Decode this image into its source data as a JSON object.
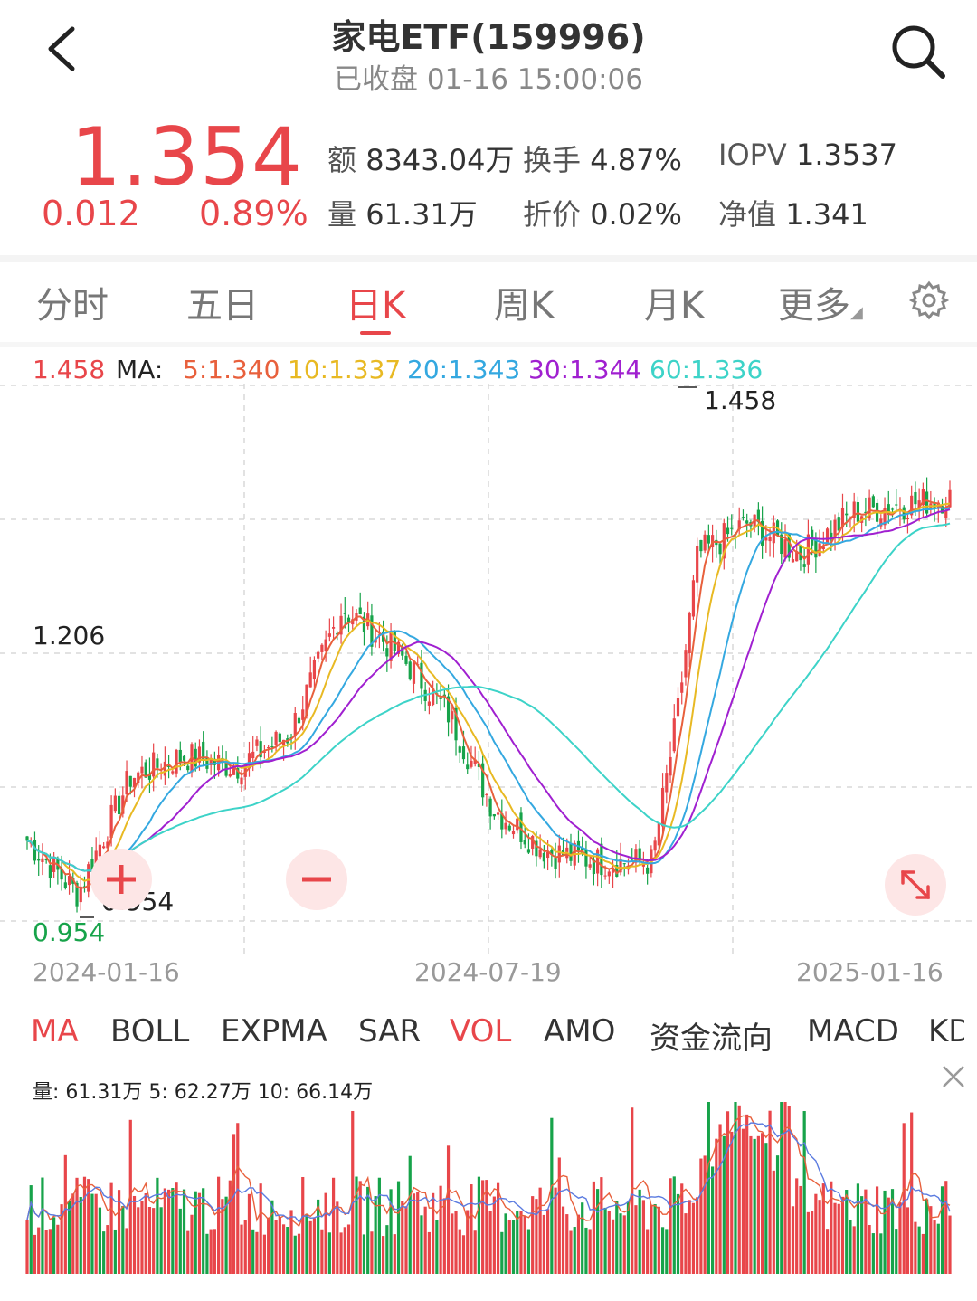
{
  "header": {
    "title": "家电ETF(159996)",
    "status": "已收盘 01-16 15:00:06"
  },
  "quote": {
    "price": "1.354",
    "change": "0.012",
    "change_pct": "0.89%",
    "stats": [
      {
        "label": "额",
        "value": "8343.04万"
      },
      {
        "label": "换手",
        "value": "4.87%"
      },
      {
        "label": "IOPV",
        "value": "1.3537"
      },
      {
        "label": "量",
        "value": "61.31万"
      },
      {
        "label": "折价",
        "value": "0.02%"
      },
      {
        "label": "净值",
        "value": "1.341"
      }
    ]
  },
  "tabs": [
    "分时",
    "五日",
    "日K",
    "周K",
    "月K",
    "更多"
  ],
  "active_tab": "日K",
  "ma_line": {
    "high": "1.458",
    "label": "MA:",
    "ma5": "5:1.340",
    "ma10": "10:1.337",
    "ma20": "20:1.343",
    "ma30": "30:1.344",
    "ma60": "60:1.336"
  },
  "price_chart": {
    "axis_mid": "1.206",
    "axis_low": "0.954",
    "max_label": "1.458",
    "min_label": "0.954",
    "dates": [
      "2024-01-16",
      "2024-07-19",
      "2025-01-16"
    ]
  },
  "indicators": [
    "MA",
    "BOLL",
    "EXPMA",
    "SAR",
    "VOL",
    "AMO",
    "资金流向",
    "MACD",
    "KD"
  ],
  "active_indicators": [
    "MA",
    "VOL"
  ],
  "volume": {
    "info": "量: 61.31万  5: 62.27万  10: 66.14万"
  },
  "colors": {
    "up": "#e8464a",
    "down": "#17a34a",
    "ma5": "#e8603c",
    "ma10": "#e8b923",
    "ma20": "#34a8e0",
    "ma30": "#a020d0",
    "ma60": "#3dd3c8"
  },
  "chart_data": {
    "type": "candlestick",
    "period": "daily",
    "x_range": [
      "2024-01-16",
      "2025-01-16"
    ],
    "y_range": [
      0.954,
      1.458
    ],
    "price_path": [
      {
        "date": "2024-01-16",
        "close": 1.03
      },
      {
        "date": "2024-02-05",
        "close": 0.98
      },
      {
        "date": "2024-02-26",
        "close": 1.09
      },
      {
        "date": "2024-03-18",
        "close": 1.11
      },
      {
        "date": "2024-04-08",
        "close": 1.1
      },
      {
        "date": "2024-04-29",
        "close": 1.13
      },
      {
        "date": "2024-05-20",
        "close": 1.25
      },
      {
        "date": "2024-06-10",
        "close": 1.21
      },
      {
        "date": "2024-07-01",
        "close": 1.15
      },
      {
        "date": "2024-07-19",
        "close": 1.06
      },
      {
        "date": "2024-08-09",
        "close": 1.02
      },
      {
        "date": "2024-08-30",
        "close": 1.01
      },
      {
        "date": "2024-09-20",
        "close": 1.01
      },
      {
        "date": "2024-09-30",
        "close": 1.15
      },
      {
        "date": "2024-10-08",
        "close": 1.3
      },
      {
        "date": "2024-10-28",
        "close": 1.33
      },
      {
        "date": "2024-11-18",
        "close": 1.3
      },
      {
        "date": "2024-12-09",
        "close": 1.34
      },
      {
        "date": "2025-01-16",
        "close": 1.354
      }
    ],
    "ma_last": {
      "MA5": 1.34,
      "MA10": 1.337,
      "MA20": 1.343,
      "MA30": 1.344,
      "MA60": 1.336
    },
    "volume_last": {
      "vol": "61.31万",
      "ma5": "62.27万",
      "ma10": "66.14万"
    }
  }
}
